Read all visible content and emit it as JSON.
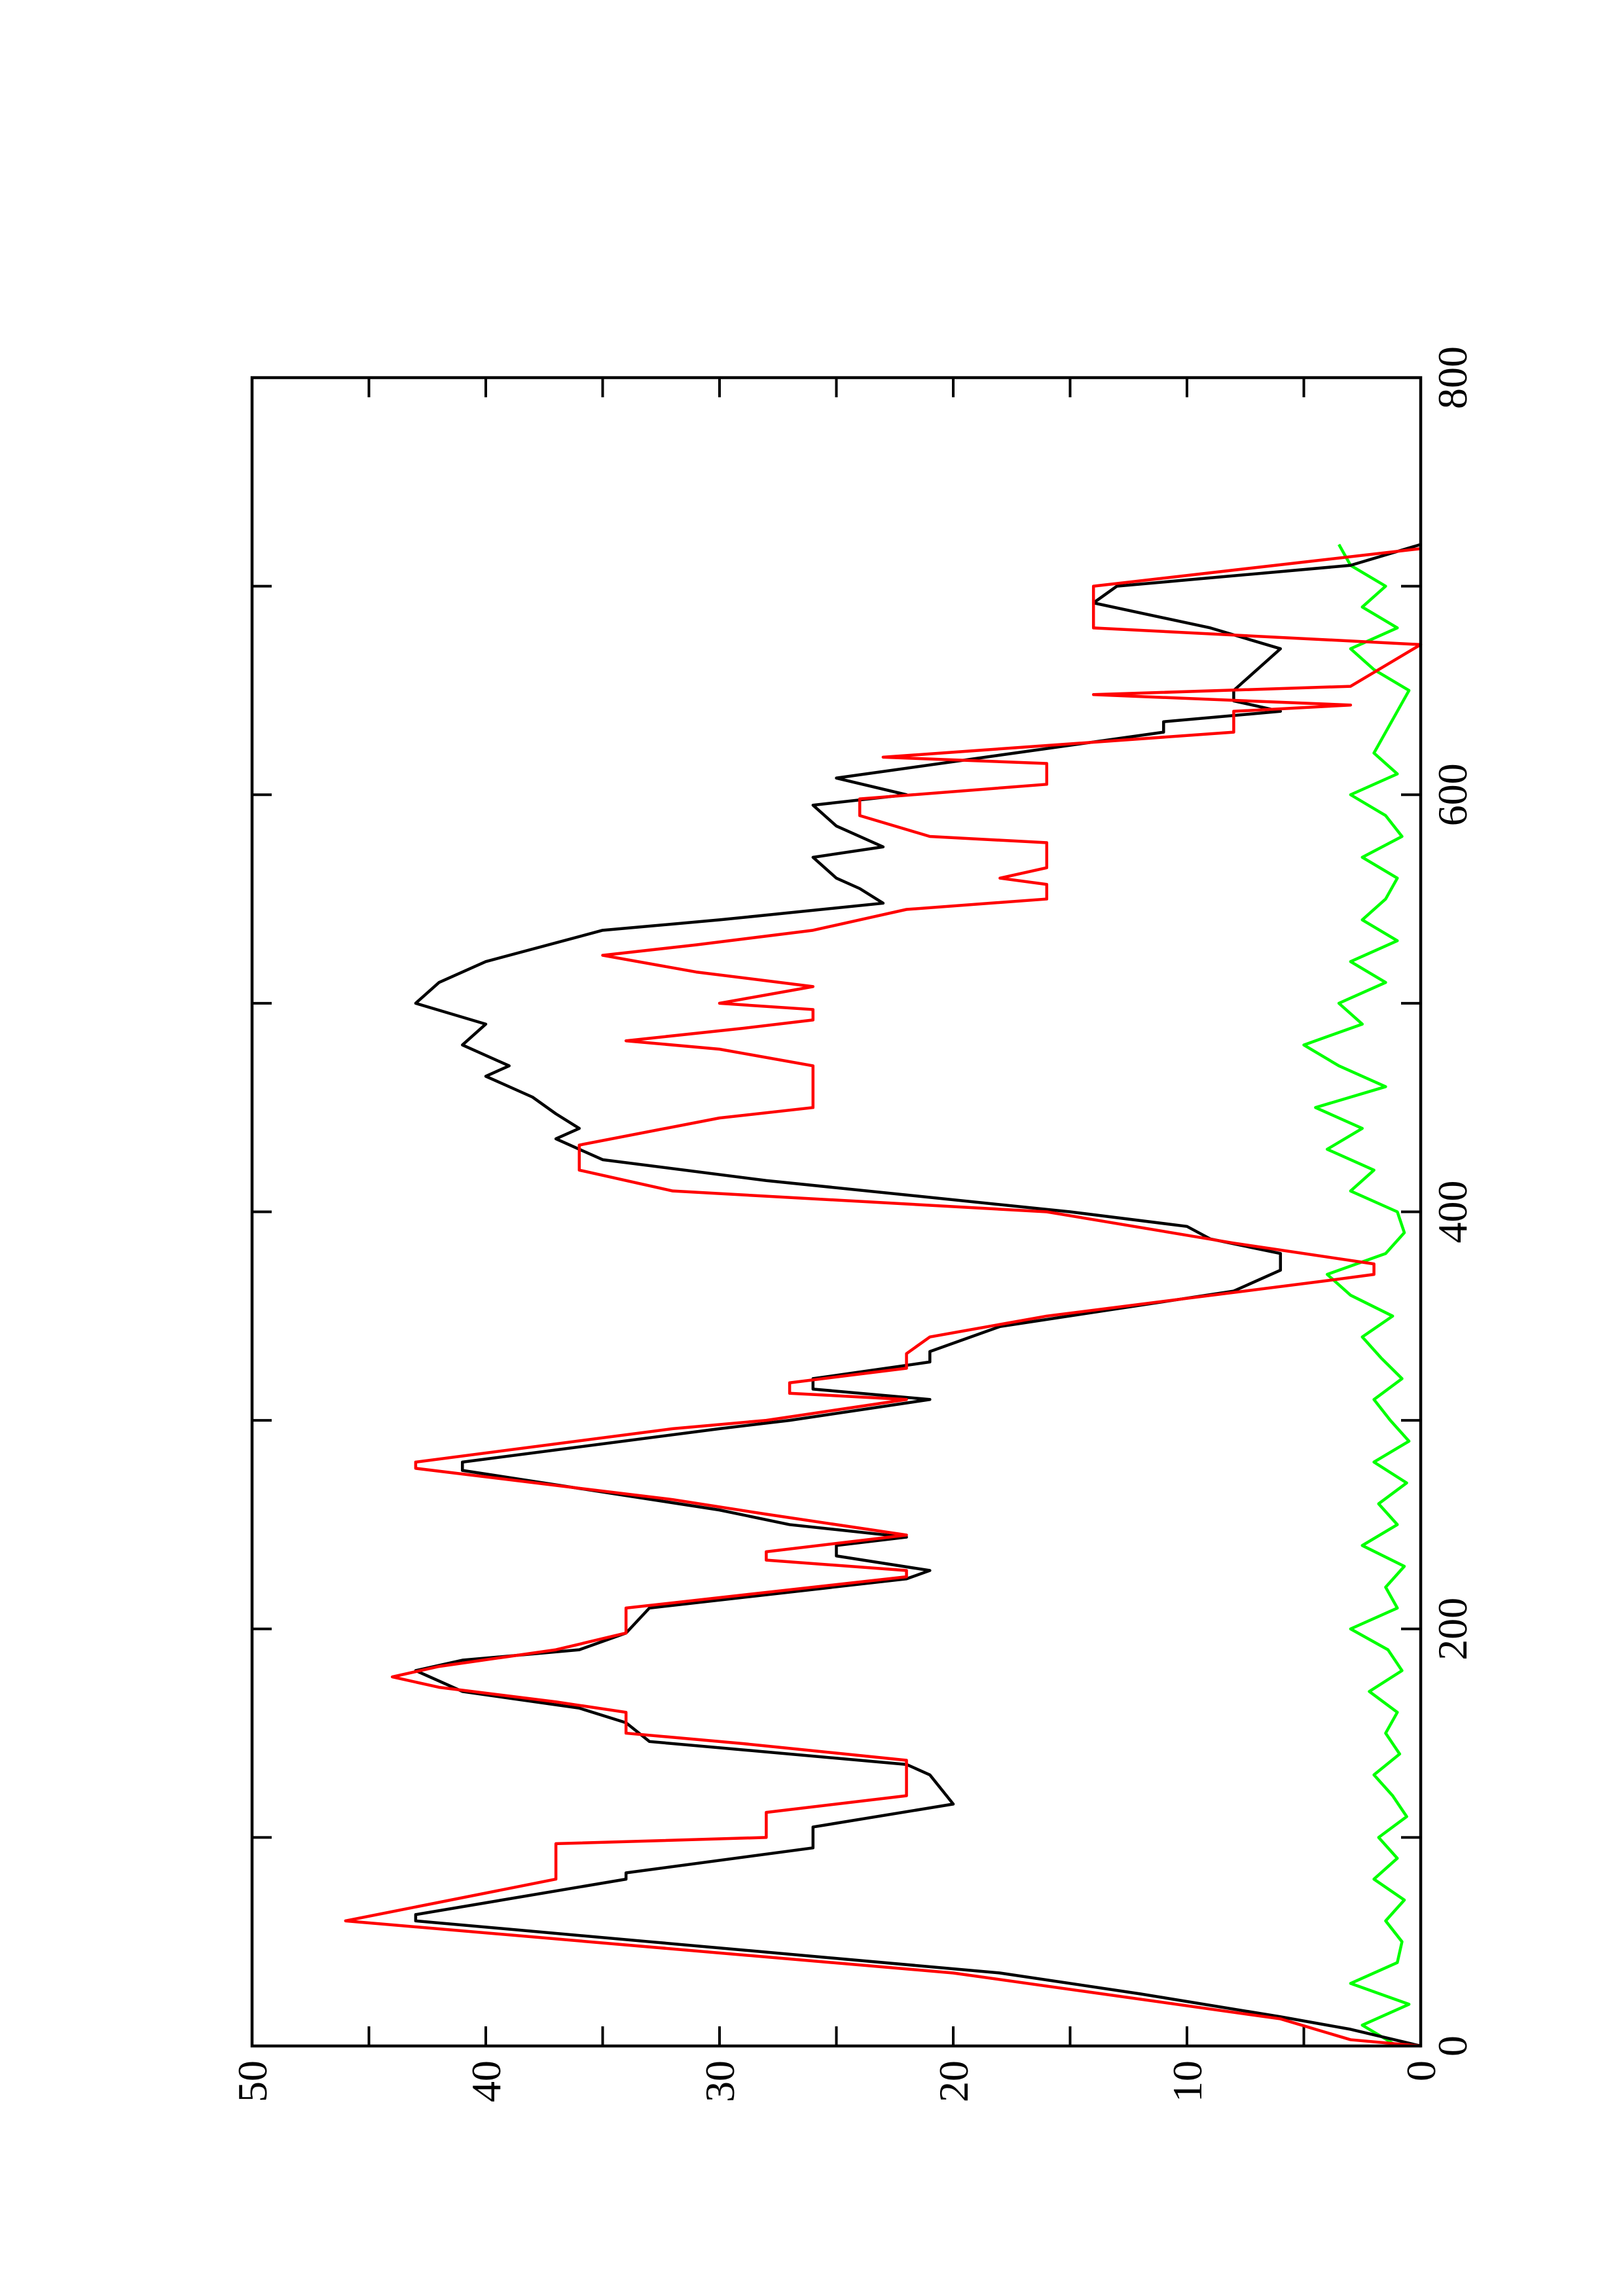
{
  "chart_data": {
    "type": "line",
    "xlim": [
      0,
      800
    ],
    "xticks": [
      0,
      200,
      400,
      600,
      800
    ],
    "xminor_ticks": [
      100,
      300,
      500,
      700
    ],
    "ylim": [
      0,
      50
    ],
    "yticks": [
      0,
      10,
      20,
      30,
      40,
      50
    ],
    "yminor_ticks": [
      5,
      15,
      25,
      35,
      45
    ],
    "rotated": true,
    "series": [
      {
        "color": "#000000",
        "x": [
          0,
          8,
          14,
          25,
          35,
          50,
          60,
          63,
          80,
          83,
          95,
          105,
          116,
          130,
          135,
          146,
          155,
          162,
          170,
          180,
          185,
          190,
          198,
          210,
          224,
          228,
          235,
          240,
          244,
          250,
          257,
          276,
          280,
          296,
          300,
          310,
          315,
          320,
          328,
          333,
          345,
          362,
          372,
          380,
          387,
          393,
          400,
          415,
          425,
          435,
          440,
          447,
          455,
          465,
          470,
          480,
          490,
          500,
          510,
          520,
          535,
          540,
          548,
          555,
          560,
          570,
          575,
          585,
          595,
          600,
          608,
          630,
          635,
          640,
          645,
          650,
          660,
          670,
          680,
          692,
          700,
          710,
          720
        ],
        "values": [
          0,
          3,
          6,
          12,
          18,
          33,
          43,
          43,
          34,
          34,
          26,
          26,
          20,
          21,
          22,
          33,
          34,
          36,
          41,
          43,
          41,
          36,
          34,
          33,
          22,
          21,
          25,
          25,
          22,
          27,
          30,
          41,
          41,
          30,
          27,
          21,
          26,
          26,
          21,
          21,
          18,
          8,
          6,
          6,
          9,
          10,
          15,
          28,
          35,
          37,
          36,
          37,
          38,
          40,
          39,
          41,
          40,
          43,
          42,
          40,
          35,
          30,
          23,
          24,
          25,
          26,
          23,
          25,
          26,
          22,
          25,
          11,
          11,
          6,
          8,
          8,
          7,
          6,
          9,
          14,
          13,
          3,
          0
        ]
      },
      {
        "color": "#ff0000",
        "x": [
          0,
          3,
          13,
          35,
          60,
          80,
          97,
          100,
          112,
          120,
          137,
          145,
          150,
          160,
          165,
          172,
          177,
          182,
          190,
          198,
          210,
          225,
          228,
          233,
          237,
          245,
          255,
          262,
          277,
          280,
          296,
          300,
          310,
          313,
          318,
          325,
          332,
          340,
          350,
          367,
          370,
          375,
          385,
          400,
          410,
          420,
          432,
          445,
          450,
          470,
          478,
          482,
          488,
          492,
          497,
          500,
          508,
          515,
          523,
          528,
          535,
          545,
          550,
          557,
          560,
          565,
          577,
          580,
          590,
          598,
          605,
          615,
          618,
          630,
          640,
          643,
          648,
          652,
          672,
          680,
          700,
          718
        ],
        "values": [
          0,
          3,
          6,
          20,
          46,
          37,
          37,
          28,
          28,
          22,
          22,
          29,
          34,
          34,
          37,
          42,
          44,
          42,
          37,
          34,
          34,
          22,
          22,
          28,
          28,
          22,
          28,
          32,
          43,
          43,
          32,
          28,
          22,
          27,
          27,
          22,
          22,
          21,
          16,
          4,
          2,
          2,
          8,
          16,
          32,
          36,
          36,
          30,
          26,
          26,
          30,
          34,
          29,
          26,
          26,
          30,
          26,
          31,
          35,
          31,
          26,
          22,
          16,
          16,
          18,
          16,
          16,
          21,
          24,
          24,
          16,
          16,
          23,
          8,
          8,
          3,
          14,
          3,
          0,
          14,
          14,
          0
        ]
      },
      {
        "color": "#00ff00",
        "x": [
          0,
          10,
          20,
          30,
          40,
          50,
          60,
          70,
          80,
          90,
          100,
          110,
          120,
          130,
          140,
          150,
          160,
          170,
          180,
          190,
          200,
          210,
          220,
          230,
          240,
          250,
          260,
          270,
          280,
          290,
          300,
          310,
          320,
          330,
          340,
          350,
          360,
          370,
          380,
          390,
          400,
          410,
          420,
          430,
          440,
          450,
          460,
          470,
          480,
          490,
          500,
          510,
          520,
          530,
          540,
          550,
          560,
          570,
          580,
          590,
          600,
          610,
          620,
          630,
          640,
          650,
          660,
          670,
          680,
          690,
          700,
          710,
          720
        ],
        "values": [
          1,
          2.5,
          0.5,
          3,
          1,
          0.8,
          1.5,
          0.7,
          2,
          1,
          1.8,
          0.6,
          1.2,
          2,
          0.9,
          1.5,
          1,
          2.2,
          0.8,
          1.4,
          3,
          1,
          1.5,
          0.7,
          2.5,
          1,
          1.8,
          0.6,
          2,
          0.5,
          1.3,
          2,
          0.8,
          1.7,
          2.5,
          1.2,
          3,
          4,
          1.5,
          0.7,
          1,
          3,
          2,
          4,
          2.5,
          4.5,
          1.5,
          3.5,
          5,
          2.5,
          3.5,
          1.5,
          3,
          1,
          2.5,
          1.5,
          1,
          2.5,
          0.8,
          1.5,
          3,
          1,
          2,
          1.5,
          1,
          0.5,
          2,
          3,
          1,
          2.5,
          1.5,
          3,
          3.5
        ]
      }
    ]
  }
}
